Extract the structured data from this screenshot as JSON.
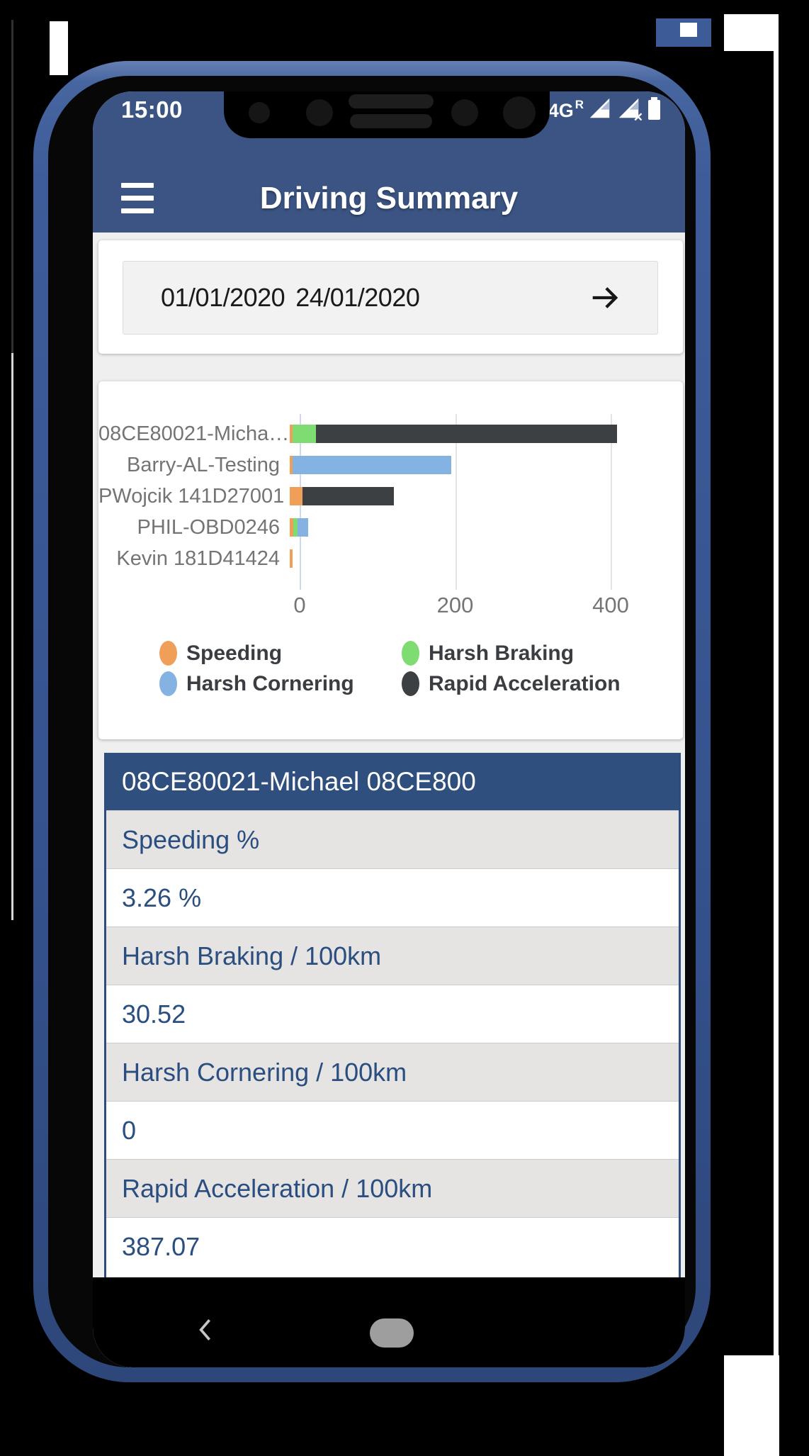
{
  "theme": {
    "header_navy": "#3b5483",
    "table_header_navy": "#2f4f7e",
    "table_label_bg": "#e6e3e3",
    "table_text_navy": "#294e7f",
    "frame_blue": "#3a5globalsFIX"
  },
  "status_bar": {
    "time": "15:00",
    "network": "4G",
    "network_badge": "R"
  },
  "app_bar": {
    "title": "Driving Summary"
  },
  "date_range": {
    "start": "01/01/2020",
    "end": "24/01/2020"
  },
  "chart_data": {
    "type": "bar",
    "orientation": "horizontal",
    "stacked": true,
    "title": "",
    "xlabel": "",
    "ylabel": "",
    "categories": [
      "08CE80021-Micha…",
      "Barry-AL-Testing",
      "PWojcik 141D27001",
      "PHIL-OBD0246",
      "Kevin 181D41424"
    ],
    "series": [
      {
        "name": "Speeding",
        "color": "#ef9f57",
        "values": [
          3.26,
          4,
          16,
          5,
          4
        ]
      },
      {
        "name": "Harsh Braking",
        "color": "#7edc72",
        "values": [
          30.52,
          0,
          0,
          5,
          0
        ]
      },
      {
        "name": "Harsh Cornering",
        "color": "#83b2e3",
        "values": [
          0,
          204,
          0,
          14,
          0
        ]
      },
      {
        "name": "Rapid Acceleration",
        "color": "#3c4043",
        "values": [
          387.07,
          0,
          118,
          0,
          0
        ]
      }
    ],
    "x_ticks": [
      0,
      200,
      400
    ],
    "xlim": [
      0,
      475
    ],
    "grid": true,
    "legend_position": "bottom"
  },
  "summary_table": {
    "title": "08CE80021-Michael 08CE800",
    "rows": [
      {
        "label": "Speeding %",
        "value": "3.26 %"
      },
      {
        "label": "Harsh Braking / 100km",
        "value": "30.52"
      },
      {
        "label": "Harsh Cornering / 100km",
        "value": "0"
      },
      {
        "label": "Rapid Acceleration / 100km",
        "value": "387.07"
      }
    ]
  }
}
